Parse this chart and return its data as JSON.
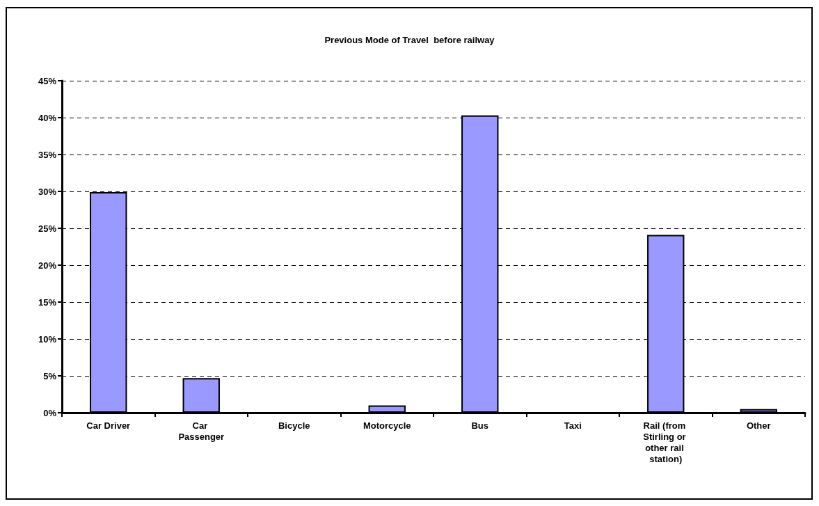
{
  "chart_data": {
    "type": "bar",
    "title": "Previous Mode of Travel  before railway",
    "categories": [
      "Car Driver",
      "Car Passenger",
      "Bicycle",
      "Motorcycle",
      "Bus",
      "Taxi",
      "Rail (from Stirling or other rail station)",
      "Other"
    ],
    "values": [
      29.9,
      4.7,
      0,
      1.0,
      40.3,
      0,
      24.1,
      0.5
    ],
    "color": "#9999ff",
    "ylim": [
      0,
      45
    ],
    "yticks": [
      {
        "value": 0,
        "label": "0%"
      },
      {
        "value": 5,
        "label": "5%"
      },
      {
        "value": 10,
        "label": "10%"
      },
      {
        "value": 15,
        "label": "15%"
      },
      {
        "value": 20,
        "label": "20%"
      },
      {
        "value": 25,
        "label": "25%"
      },
      {
        "value": 30,
        "label": "30%"
      },
      {
        "value": 35,
        "label": "35%"
      },
      {
        "value": 40,
        "label": "40%"
      },
      {
        "value": 45,
        "label": "45%"
      }
    ],
    "grid": "y"
  }
}
